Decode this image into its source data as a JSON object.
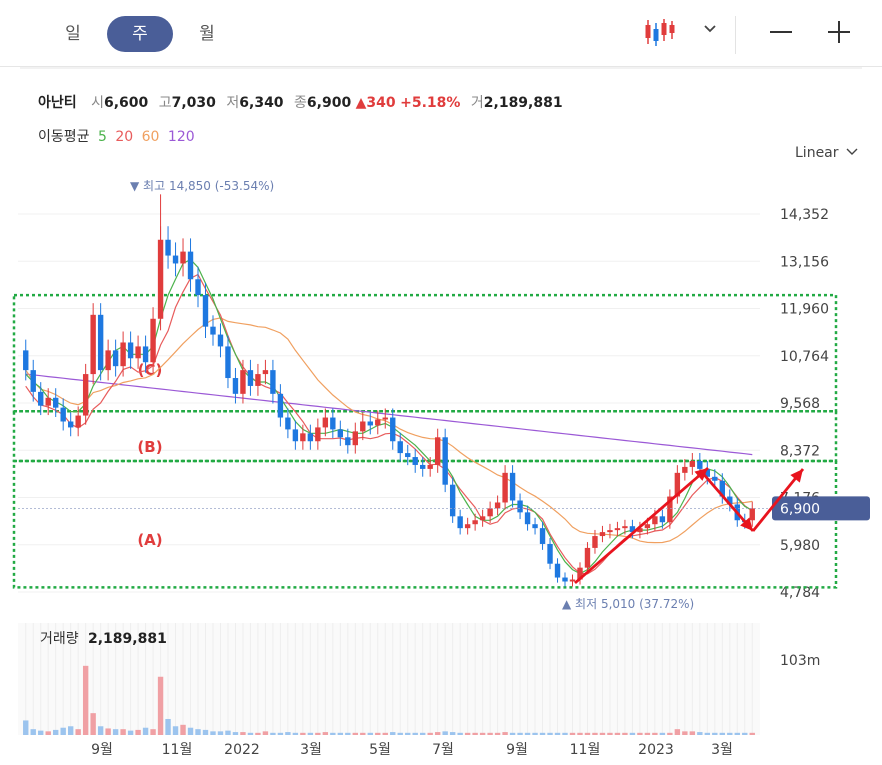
{
  "tabs": [
    "일",
    "주",
    "월"
  ],
  "active_tab": "주",
  "toolbar": {
    "chart_type_icon": "candlestick-icon",
    "dropdown_icon": "chevron-down-icon",
    "zoom_out_icon": "minus-icon",
    "zoom_in_icon": "plus-icon"
  },
  "quote": {
    "name": "아난티",
    "open_label": "시",
    "open": "6,600",
    "high_label": "고",
    "high": "7,030",
    "low_label": "저",
    "low": "6,340",
    "close_label": "종",
    "close": "6,900",
    "change": "▲340",
    "change_pct": "+5.18%",
    "volume_label": "거",
    "volume": "2,189,881"
  },
  "ma_legend": {
    "label": "이동평균",
    "items": [
      {
        "name": "5",
        "color": "#4cb34c"
      },
      {
        "name": "20",
        "color": "#e85c5c"
      },
      {
        "name": "60",
        "color": "#f0a060"
      },
      {
        "name": "120",
        "color": "#9b59d6"
      }
    ]
  },
  "scale_label": "Linear",
  "volume_panel": {
    "label": "거래량",
    "value": "2,189,881",
    "axis_label": "103m"
  },
  "colors": {
    "up": "#e03c3c",
    "down": "#1e78e0",
    "accent": "#4a5e98",
    "zone": "#22aa44",
    "arrow": "#e8141e"
  },
  "chart_data": {
    "type": "candlestick",
    "y_ticks": [
      14352,
      13156,
      11960,
      10764,
      9568,
      8372,
      7176,
      5980,
      4784
    ],
    "y_tick_labels": [
      "14,352",
      "13,156",
      "11,960",
      "10,764",
      "9,568",
      "8,372",
      "7,176",
      "5,980",
      "4,784"
    ],
    "ylim": [
      4784,
      15200
    ],
    "x_ticks": [
      "9월",
      "11월",
      "2022",
      "3월",
      "5월",
      "7월",
      "9월",
      "11월",
      "2023",
      "3월"
    ],
    "current_price": {
      "value": 6900,
      "label": "6,900"
    },
    "annotations": {
      "high": {
        "text": "▼ 최고 14,850 (-53.54%)",
        "value": 14850
      },
      "low": {
        "text": "▲ 최저 5,010 (37.72%)",
        "value": 5010
      }
    },
    "zones": [
      {
        "label": "(C)",
        "from": 9360,
        "to": 12300
      },
      {
        "label": "(B)",
        "from": 8100,
        "to": 9360
      },
      {
        "label": "(A)",
        "from": 4900,
        "to": 8100
      }
    ],
    "closes": [
      10400,
      9850,
      9500,
      9700,
      9450,
      9100,
      8950,
      9250,
      10300,
      11800,
      10400,
      10900,
      10500,
      11100,
      10700,
      11000,
      10600,
      11700,
      13700,
      13300,
      13100,
      13400,
      12700,
      12300,
      11500,
      11300,
      11000,
      10200,
      9800,
      10400,
      10000,
      10300,
      10400,
      9800,
      9200,
      8900,
      8600,
      8800,
      8600,
      8950,
      9200,
      8900,
      8700,
      8500,
      8850,
      9100,
      9000,
      9150,
      9200,
      8600,
      8300,
      8200,
      8000,
      7900,
      8000,
      8700,
      7500,
      6700,
      6400,
      6500,
      6600,
      6700,
      6900,
      7050,
      7800,
      7100,
      6800,
      6500,
      6400,
      6000,
      5500,
      5150,
      5050,
      5100,
      5400,
      5900,
      6200,
      6300,
      6350,
      6400,
      6450,
      6300,
      6400,
      6500,
      6700,
      6550,
      7200,
      7800,
      7950,
      8100,
      7900,
      7700,
      7600,
      7200,
      7000,
      6600,
      6550,
      6900
    ],
    "opens": [
      10900,
      10400,
      9850,
      9500,
      9700,
      9450,
      9100,
      8950,
      9250,
      10300,
      11800,
      10400,
      10900,
      10500,
      11100,
      10700,
      11000,
      10600,
      11700,
      13700,
      13300,
      13100,
      13400,
      12700,
      12300,
      11500,
      11300,
      11000,
      10200,
      9800,
      10400,
      10000,
      10300,
      10400,
      9800,
      9200,
      8900,
      8600,
      8800,
      8600,
      8950,
      9200,
      8900,
      8700,
      8500,
      8850,
      9100,
      9000,
      9150,
      9200,
      8600,
      8300,
      8200,
      8000,
      7900,
      8000,
      8700,
      7500,
      6700,
      6400,
      6500,
      6600,
      6700,
      6900,
      7050,
      7800,
      7100,
      6800,
      6500,
      6400,
      6000,
      5500,
      5150,
      5050,
      5100,
      5400,
      5900,
      6200,
      6300,
      6350,
      6400,
      6450,
      6300,
      6400,
      6500,
      6700,
      6550,
      7200,
      7800,
      7950,
      8100,
      7900,
      7700,
      7600,
      7200,
      7000,
      6600,
      6600
    ],
    "volumes": [
      20,
      8,
      6,
      5,
      7,
      10,
      12,
      8,
      95,
      30,
      12,
      9,
      8,
      8,
      6,
      7,
      10,
      8,
      80,
      22,
      12,
      14,
      10,
      8,
      7,
      5,
      5,
      6,
      4,
      4,
      3,
      3,
      5,
      3,
      3,
      4,
      3,
      3,
      3,
      3,
      4,
      3,
      3,
      3,
      3,
      3,
      3,
      3,
      3,
      4,
      3,
      3,
      3,
      3,
      3,
      4,
      5,
      4,
      3,
      3,
      3,
      3,
      3,
      3,
      4,
      3,
      3,
      3,
      3,
      3,
      3,
      3,
      3,
      3,
      3,
      3,
      3,
      3,
      3,
      3,
      3,
      3,
      3,
      3,
      3,
      3,
      3,
      8,
      5,
      5,
      4,
      3,
      3,
      3,
      3,
      3,
      3,
      3
    ],
    "ma5": [
      10300,
      10100,
      9950,
      9700,
      9600,
      9500,
      9350,
      9350,
      9550,
      10000,
      10300,
      10600,
      10900,
      11000,
      10800,
      10800,
      10800,
      11000,
      11700,
      12300,
      12700,
      13100,
      13200,
      13000,
      12600,
      12200,
      11700,
      11200,
      10800,
      10400,
      10200,
      10100,
      10100,
      10000,
      9700,
      9400,
      9100,
      8900,
      8800,
      8800,
      8800,
      8850,
      8900,
      8850,
      8800,
      8800,
      8900,
      9000,
      9050,
      8950,
      8800,
      8650,
      8500,
      8300,
      8100,
      8150,
      8000,
      7700,
      7300,
      7000,
      6700,
      6600,
      6600,
      6700,
      6900,
      7000,
      7000,
      6950,
      6800,
      6550,
      6200,
      5850,
      5550,
      5350,
      5250,
      5350,
      5550,
      5800,
      6000,
      6200,
      6300,
      6350,
      6350,
      6350,
      6400,
      6450,
      6600,
      6800,
      7150,
      7550,
      7800,
      7900,
      7850,
      7700,
      7450,
      7150,
      6950,
      6850
    ]
  }
}
